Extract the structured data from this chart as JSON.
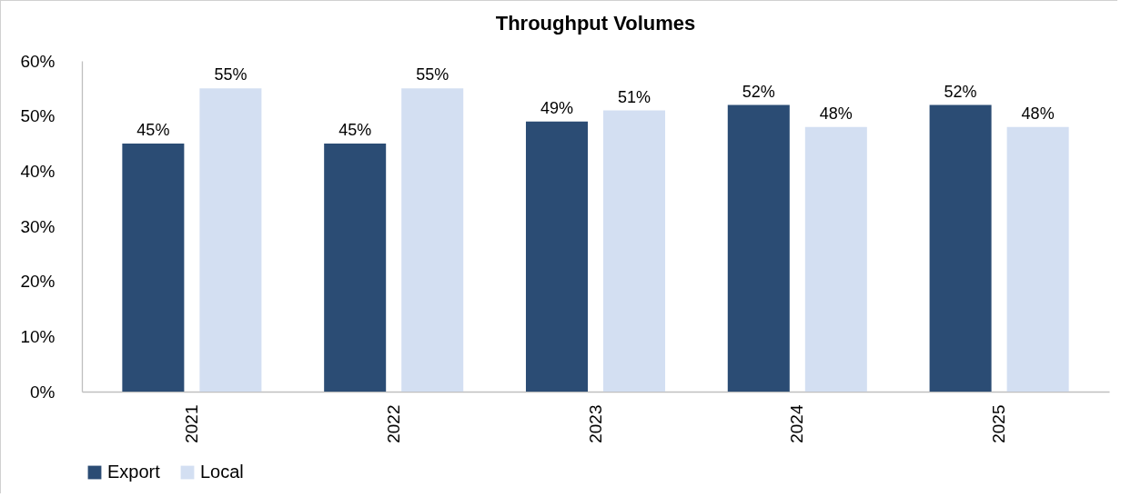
{
  "chart_data": {
    "type": "bar",
    "title": "Throughput Volumes",
    "categories": [
      "2021",
      "2022",
      "2023",
      "2024",
      "2025"
    ],
    "series": [
      {
        "name": "Export",
        "color": "#2b4c74",
        "values": [
          45,
          45,
          49,
          52,
          52
        ],
        "value_labels": [
          "45%",
          "45%",
          "49%",
          "52%",
          "52%"
        ]
      },
      {
        "name": "Local",
        "color": "#d3dff2",
        "values": [
          55,
          55,
          51,
          48,
          48
        ],
        "value_labels": [
          "55%",
          "55%",
          "51%",
          "48%",
          "48%"
        ]
      }
    ],
    "ylim": [
      0,
      60
    ],
    "yticks": [
      {
        "value": 0,
        "label": "0%"
      },
      {
        "value": 10,
        "label": "10%"
      },
      {
        "value": 20,
        "label": "20%"
      },
      {
        "value": 30,
        "label": "30%"
      },
      {
        "value": 40,
        "label": "40%"
      },
      {
        "value": 50,
        "label": "50%"
      },
      {
        "value": 60,
        "label": "60%"
      }
    ],
    "grid": false,
    "legend": "bottom"
  }
}
